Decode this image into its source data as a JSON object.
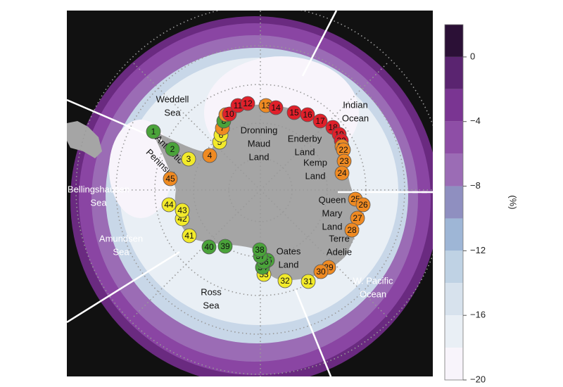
{
  "regions": [
    {
      "lines": [
        "Weddell",
        "Sea"
      ]
    },
    {
      "lines": [
        "Indian",
        "Ocean"
      ]
    },
    {
      "lines": [
        "Dronning",
        "Maud",
        "Land"
      ]
    },
    {
      "lines": [
        "Enderby",
        "Land"
      ]
    },
    {
      "lines": [
        "Kemp",
        "Land"
      ]
    },
    {
      "lines": [
        "Queen",
        "Mary",
        "Land"
      ]
    },
    {
      "lines": [
        "Terre",
        "Adelie"
      ]
    },
    {
      "lines": [
        "Oates",
        "Land"
      ]
    },
    {
      "lines": [
        "Bellingshausen",
        "Sea"
      ]
    },
    {
      "lines": [
        "Amundsen",
        "Sea"
      ]
    },
    {
      "lines": [
        "Ross",
        "Sea"
      ]
    },
    {
      "lines": [
        "W. Pacific",
        "Ocean"
      ]
    },
    {
      "lines": [
        "Antarctic",
        "Peninsula"
      ]
    }
  ],
  "sites": [
    {
      "label": "1",
      "color": "#4aa33a"
    },
    {
      "label": "2",
      "color": "#4aa33a"
    },
    {
      "label": "3",
      "color": "#f2ea2a"
    },
    {
      "label": "4",
      "color": "#ef8a22"
    },
    {
      "label": "5",
      "color": "#f2ea2a"
    },
    {
      "label": "6",
      "color": "#f2ea2a"
    },
    {
      "label": "7",
      "color": "#ef8a22"
    },
    {
      "label": "8",
      "color": "#4aa33a"
    },
    {
      "label": "9",
      "color": "#ef8a22"
    },
    {
      "label": "10",
      "color": "#e0202a"
    },
    {
      "label": "11",
      "color": "#e0202a"
    },
    {
      "label": "12",
      "color": "#e0202a"
    },
    {
      "label": "13",
      "color": "#ef8a22"
    },
    {
      "label": "14",
      "color": "#e0202a"
    },
    {
      "label": "15",
      "color": "#e0202a"
    },
    {
      "label": "16",
      "color": "#e0202a"
    },
    {
      "label": "17",
      "color": "#e0202a"
    },
    {
      "label": "18",
      "color": "#e0202a"
    },
    {
      "label": "19",
      "color": "#e0202a"
    },
    {
      "label": "20",
      "color": "#e0202a"
    },
    {
      "label": "21",
      "color": "#ef8a22"
    },
    {
      "label": "22",
      "color": "#ef8a22"
    },
    {
      "label": "23",
      "color": "#ef8a22"
    },
    {
      "label": "24",
      "color": "#ef8a22"
    },
    {
      "label": "25",
      "color": "#ef8a22"
    },
    {
      "label": "26",
      "color": "#ef8a22"
    },
    {
      "label": "27",
      "color": "#ef8a22"
    },
    {
      "label": "28",
      "color": "#ef8a22"
    },
    {
      "label": "29",
      "color": "#ef8a22"
    },
    {
      "label": "30",
      "color": "#ef8a22"
    },
    {
      "label": "31",
      "color": "#f2ea2a"
    },
    {
      "label": "32",
      "color": "#f2ea2a"
    },
    {
      "label": "33",
      "color": "#f2ea2a"
    },
    {
      "label": "34",
      "color": "#4aa33a"
    },
    {
      "label": "35",
      "color": "#4aa33a"
    },
    {
      "label": "36",
      "color": "#4aa33a"
    },
    {
      "label": "37",
      "color": "#4aa33a"
    },
    {
      "label": "38",
      "color": "#4aa33a"
    },
    {
      "label": "39",
      "color": "#4aa33a"
    },
    {
      "label": "40",
      "color": "#4aa33a"
    },
    {
      "label": "41",
      "color": "#f2ea2a"
    },
    {
      "label": "42",
      "color": "#f2ea2a"
    },
    {
      "label": "43",
      "color": "#f2ea2a"
    },
    {
      "label": "44",
      "color": "#f2ea2a"
    },
    {
      "label": "45",
      "color": "#ef8a22"
    }
  ],
  "colorbar": {
    "label": "(%)",
    "lim": [
      2,
      -20
    ],
    "levels": [
      2,
      0,
      -2,
      -4,
      -6,
      -8,
      -10,
      -12,
      -14,
      -16,
      -18,
      -20
    ],
    "colors": [
      "#2b1036",
      "#5a2470",
      "#7a3592",
      "#8e4ea6",
      "#9b6cb5",
      "#8f8fc0",
      "#9eb6d6",
      "#bfd2e4",
      "#d7e2ed",
      "#e9eff5",
      "#f8f4fb"
    ],
    "ticks": [
      0,
      {
        "value": -4,
        "label": "−4"
      },
      {
        "value": -8,
        "label": "−8"
      },
      {
        "value": -12,
        "label": "−12"
      },
      {
        "value": -16,
        "label": "−16"
      },
      {
        "value": -20,
        "label": "−20"
      }
    ]
  }
}
